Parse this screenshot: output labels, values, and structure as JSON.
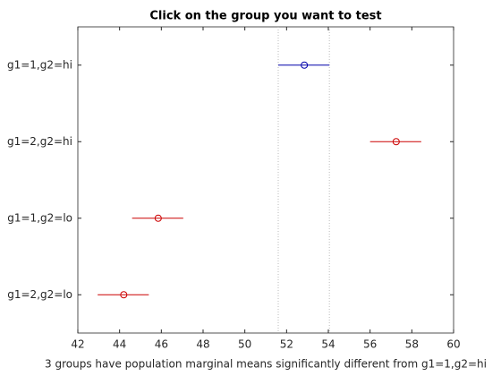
{
  "chart_data": {
    "type": "interval",
    "title": "Click on the group you want to test",
    "xlabel": "3 groups have population marginal means significantly different from g1=1,g2=hi",
    "categories": [
      "g1=1,g2=hi",
      "g1=2,g2=hi",
      "g1=1,g2=lo",
      "g1=2,g2=lo"
    ],
    "values": [
      52.85,
      57.25,
      45.85,
      44.2
    ],
    "lower": [
      51.6,
      56.0,
      44.6,
      42.95
    ],
    "upper": [
      54.05,
      58.45,
      47.05,
      45.4
    ],
    "colors": [
      "#0000aa",
      "#cc0000",
      "#cc0000",
      "#cc0000"
    ],
    "reference_lines": [
      51.6,
      54.05
    ],
    "xlim": [
      42,
      60
    ],
    "xticks": [
      42,
      44,
      46,
      48,
      50,
      52,
      54,
      56,
      58,
      60
    ]
  }
}
